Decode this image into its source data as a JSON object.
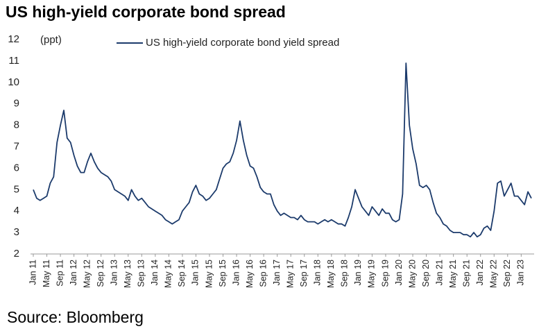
{
  "chart_data": {
    "type": "line",
    "title": "US high-yield corporate bond spread",
    "y_label": "(ppt)",
    "source": "Source: Bloomberg",
    "categories": [
      "Jan 11",
      null,
      null,
      null,
      "May 11",
      null,
      null,
      null,
      "Sep 11",
      null,
      null,
      null,
      "Jan 12",
      null,
      null,
      null,
      "May 12",
      null,
      null,
      null,
      "Sep 12",
      null,
      null,
      null,
      "Jan 13",
      null,
      null,
      null,
      "May 13",
      null,
      null,
      null,
      "Sep 13",
      null,
      null,
      null,
      "Jan 14",
      null,
      null,
      null,
      "May 14",
      null,
      null,
      null,
      "Sep 14",
      null,
      null,
      null,
      "Jan 15",
      null,
      null,
      null,
      "May 15",
      null,
      null,
      null,
      "Sep 15",
      null,
      null,
      null,
      "Jan 16",
      null,
      null,
      null,
      "May 16",
      null,
      null,
      null,
      "Sep 16",
      null,
      null,
      null,
      "Jan 17",
      null,
      null,
      null,
      "May 17",
      null,
      null,
      null,
      "Sep 17",
      null,
      null,
      null,
      "Jan 18",
      null,
      null,
      null,
      "May 18",
      null,
      null,
      null,
      "Sep 18",
      null,
      null,
      null,
      "Jan 19",
      null,
      null,
      null,
      "May 19",
      null,
      null,
      null,
      "Sep 19",
      null,
      null,
      null,
      "Jan 20",
      null,
      null,
      null,
      "May 20",
      null,
      null,
      null,
      "Sep 20",
      null,
      null,
      null,
      "Jan 21",
      null,
      null,
      null,
      "May 21",
      null,
      null,
      null,
      "Sep 21",
      null,
      null,
      null,
      "Jan 22",
      null,
      null,
      null,
      "May 22",
      null,
      null,
      null,
      "Sep 22",
      null,
      null,
      null,
      "Jan 23",
      null,
      null,
      null
    ],
    "series": [
      {
        "name": "US high-yield corporate bond yield spread",
        "color": "#1b3a6b",
        "values": [
          5.0,
          4.6,
          4.5,
          4.6,
          4.7,
          5.3,
          5.6,
          7.2,
          8.0,
          8.7,
          7.4,
          7.2,
          6.6,
          6.1,
          5.8,
          5.8,
          6.3,
          6.7,
          6.3,
          6.0,
          5.8,
          5.7,
          5.6,
          5.4,
          5.0,
          4.9,
          4.8,
          4.7,
          4.5,
          5.0,
          4.7,
          4.5,
          4.6,
          4.4,
          4.2,
          4.1,
          4.0,
          3.9,
          3.8,
          3.6,
          3.5,
          3.4,
          3.5,
          3.6,
          4.0,
          4.2,
          4.4,
          4.9,
          5.2,
          4.8,
          4.7,
          4.5,
          4.6,
          4.8,
          5.0,
          5.5,
          6.0,
          6.2,
          6.3,
          6.7,
          7.3,
          8.2,
          7.3,
          6.6,
          6.1,
          6.0,
          5.6,
          5.1,
          4.9,
          4.8,
          4.8,
          4.3,
          4.0,
          3.8,
          3.9,
          3.8,
          3.7,
          3.7,
          3.6,
          3.8,
          3.6,
          3.5,
          3.5,
          3.5,
          3.4,
          3.5,
          3.6,
          3.5,
          3.6,
          3.5,
          3.4,
          3.4,
          3.3,
          3.7,
          4.2,
          5.0,
          4.6,
          4.2,
          4.0,
          3.8,
          4.2,
          4.0,
          3.8,
          4.1,
          3.9,
          3.9,
          3.6,
          3.5,
          3.6,
          4.8,
          10.9,
          8.0,
          6.9,
          6.2,
          5.2,
          5.1,
          5.2,
          5.0,
          4.4,
          3.9,
          3.7,
          3.4,
          3.3,
          3.1,
          3.0,
          3.0,
          3.0,
          2.9,
          2.9,
          2.8,
          3.0,
          2.8,
          2.9,
          3.2,
          3.3,
          3.1,
          4.0,
          5.3,
          5.4,
          4.7,
          5.0,
          5.3,
          4.7,
          4.7,
          4.5,
          4.3,
          4.9,
          4.6
        ]
      }
    ],
    "ylim": [
      2,
      12
    ],
    "yticks": [
      2,
      3,
      4,
      5,
      6,
      7,
      8,
      9,
      10,
      11,
      12
    ]
  }
}
